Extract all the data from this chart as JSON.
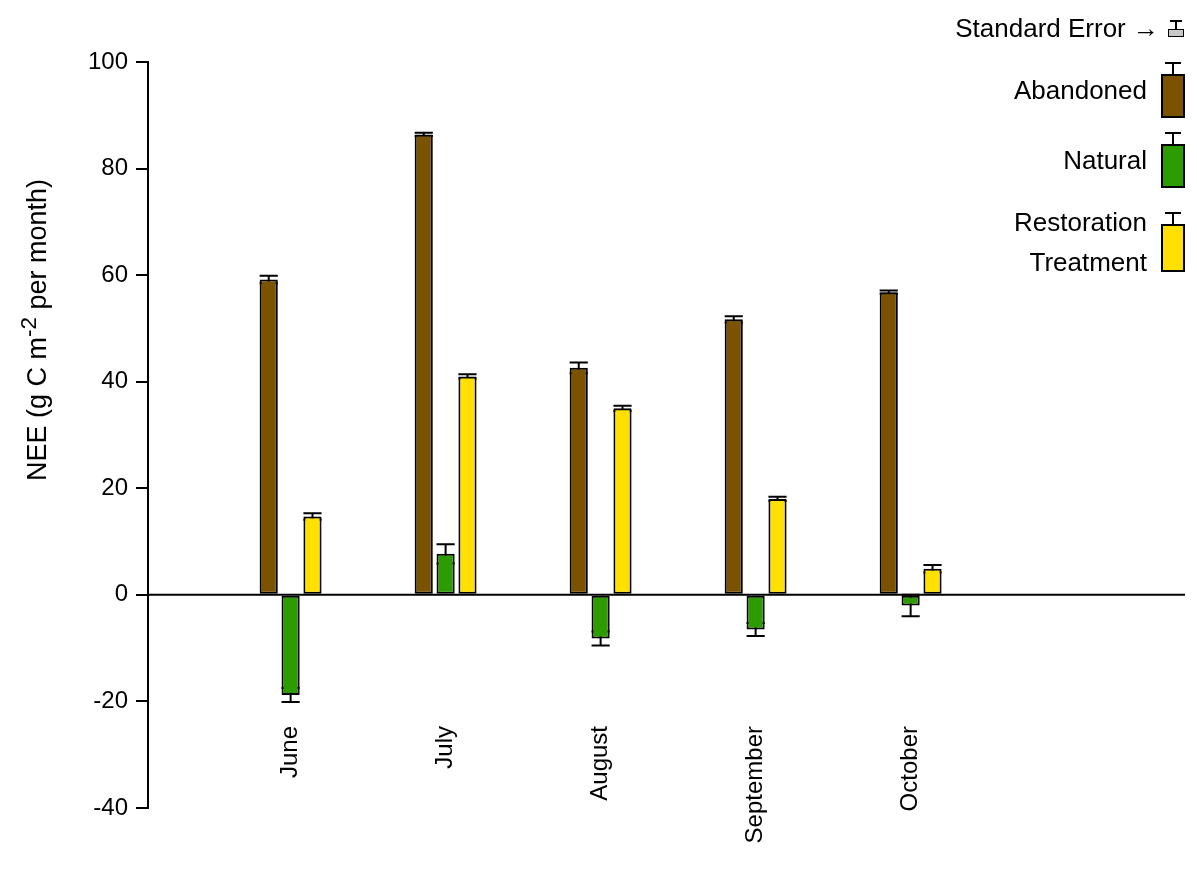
{
  "chart_data": {
    "type": "bar",
    "ylabel": "NEE (g C m$^{-2}$ per month)",
    "categories": [
      "June",
      "July",
      "August",
      "September",
      "October"
    ],
    "series": [
      {
        "name": "Abandoned",
        "color": "#7b5200",
        "values": [
          59.2,
          86.4,
          42.6,
          51.7,
          56.8
        ],
        "errors": [
          0.7,
          0.3,
          1.0,
          0.6,
          0.3
        ]
      },
      {
        "name": "Natural",
        "color": "#2d9c00",
        "values": [
          -18.8,
          7.7,
          -8.2,
          -6.5,
          -2.0
        ],
        "errors": [
          1.3,
          1.8,
          1.3,
          1.2,
          2.0
        ]
      },
      {
        "name": "Restoration Treatment",
        "color": "#ffe000",
        "values": [
          14.7,
          41.0,
          35.0,
          18.0,
          4.9
        ],
        "errors": [
          0.6,
          0.4,
          0.5,
          0.4,
          0.7
        ]
      }
    ],
    "ylim": [
      -40,
      100
    ],
    "yticks": [
      -40,
      -20,
      0,
      20,
      40,
      60,
      80,
      100
    ],
    "legend": "top right",
    "annotations": [
      "Standard Error →"
    ]
  }
}
